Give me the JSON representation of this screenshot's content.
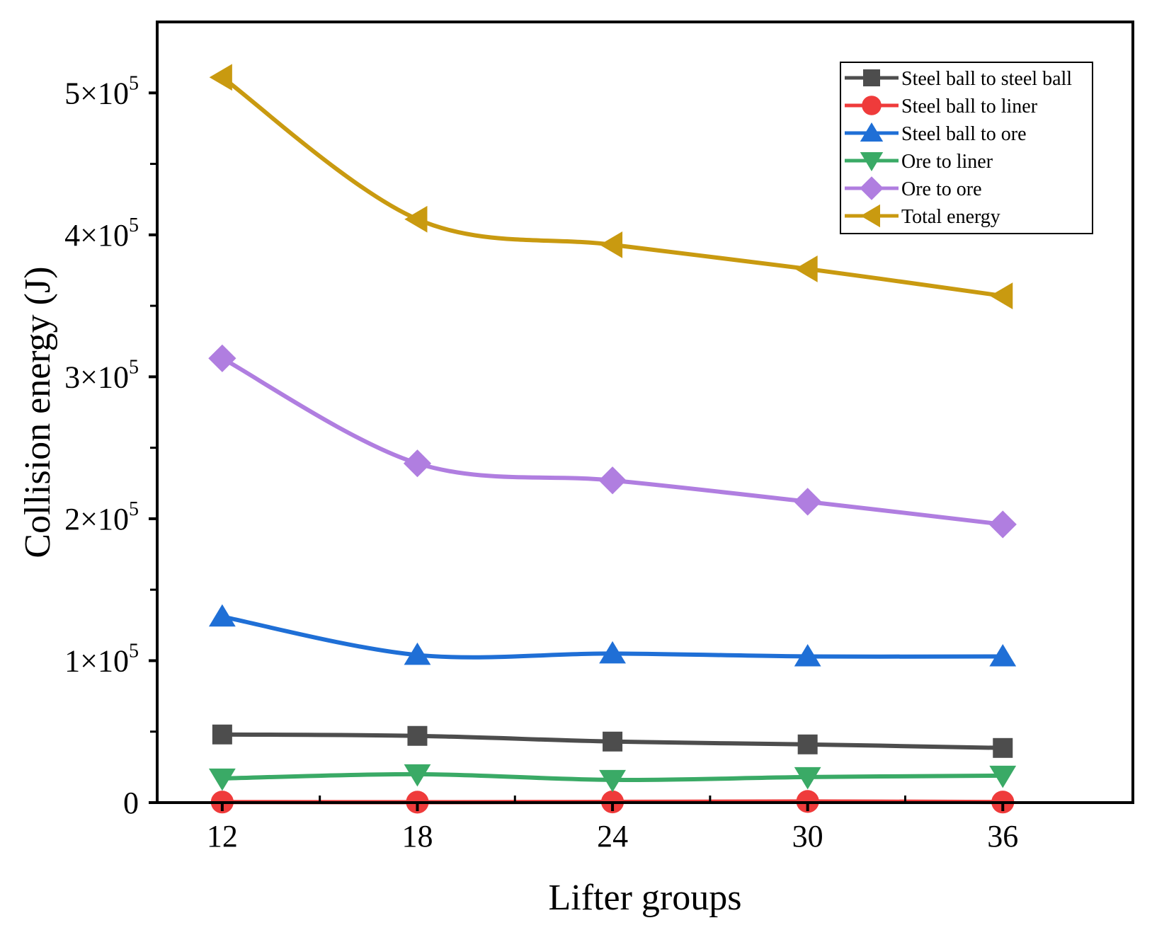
{
  "chart_data": {
    "type": "line",
    "title": "",
    "xlabel": "Lifter groups",
    "ylabel": "Collision energy (J)",
    "x": [
      12,
      18,
      24,
      30,
      36
    ],
    "xlim": [
      10,
      40
    ],
    "ylim": [
      0,
      550000
    ],
    "xticks": [
      "12",
      "18",
      "24",
      "30",
      "36"
    ],
    "yticks": [
      {
        "value": 0,
        "base": "0",
        "exp": ""
      },
      {
        "value": 100000,
        "base": "1×10",
        "exp": "5"
      },
      {
        "value": 200000,
        "base": "2×10",
        "exp": "5"
      },
      {
        "value": 300000,
        "base": "3×10",
        "exp": "5"
      },
      {
        "value": 400000,
        "base": "4×10",
        "exp": "5"
      },
      {
        "value": 500000,
        "base": "5×10",
        "exp": "5"
      }
    ],
    "grid": false,
    "legend_position": "top-right",
    "series": [
      {
        "name": "Steel ball to steel ball",
        "color": "#4d4d4d",
        "marker": "square",
        "values": [
          48000,
          47000,
          43000,
          41000,
          38500
        ]
      },
      {
        "name": "Steel ball to liner",
        "color": "#ef3b3b",
        "marker": "circle",
        "values": [
          400,
          300,
          500,
          800,
          400
        ]
      },
      {
        "name": "Steel ball to ore",
        "color": "#1f6fd6",
        "marker": "triangle-up",
        "values": [
          131000,
          104000,
          105000,
          103000,
          103000
        ]
      },
      {
        "name": "Ore to liner",
        "color": "#3aaa66",
        "marker": "triangle-down",
        "values": [
          17000,
          20000,
          16000,
          18000,
          19000
        ]
      },
      {
        "name": "Ore to ore",
        "color": "#b07ee0",
        "marker": "diamond",
        "values": [
          313000,
          239000,
          227000,
          212000,
          196000
        ]
      },
      {
        "name": "Total energy",
        "color": "#c99a10",
        "marker": "triangle-left",
        "values": [
          511000,
          411000,
          393000,
          376000,
          357000
        ]
      }
    ]
  }
}
